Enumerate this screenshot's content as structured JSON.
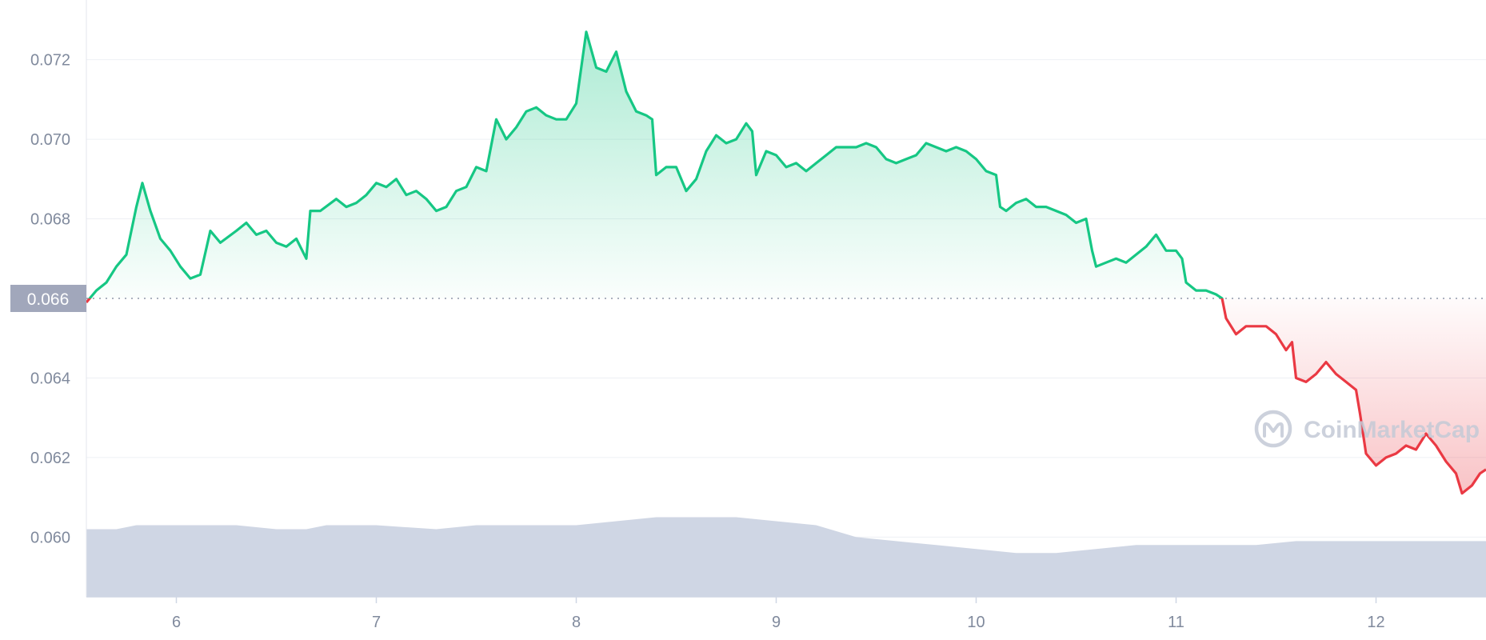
{
  "chart_data": {
    "type": "line",
    "title": "",
    "xlabel": "",
    "ylabel": "",
    "x_ticks": [
      "6",
      "7",
      "8",
      "9",
      "10",
      "11",
      "12"
    ],
    "y_ticks": [
      "0.060",
      "0.062",
      "0.064",
      "0.066",
      "0.068",
      "0.070",
      "0.072"
    ],
    "ylim": [
      0.0585,
      0.0735
    ],
    "xlim": [
      5.55,
      12.55
    ],
    "grid": true,
    "reference_line": {
      "value": 0.066,
      "label": "0.066",
      "style": "dotted"
    },
    "colors": {
      "above_reference": "#16c784",
      "below_reference": "#ea3943",
      "volume": "#cfd6e4",
      "grid": "#eef0f4",
      "tick_text": "#808a9d",
      "reference_label_bg": "#a1a7bb"
    },
    "series": [
      {
        "values": [
          [
            5.55,
            0.0659
          ],
          [
            5.6,
            0.0662
          ],
          [
            5.65,
            0.0664
          ],
          [
            5.7,
            0.0668
          ],
          [
            5.75,
            0.0671
          ],
          [
            5.8,
            0.0683
          ],
          [
            5.83,
            0.0689
          ],
          [
            5.87,
            0.0682
          ],
          [
            5.92,
            0.0675
          ],
          [
            5.97,
            0.0672
          ],
          [
            6.02,
            0.0668
          ],
          [
            6.07,
            0.0665
          ],
          [
            6.12,
            0.0666
          ],
          [
            6.17,
            0.0677
          ],
          [
            6.22,
            0.0674
          ],
          [
            6.3,
            0.0677
          ],
          [
            6.35,
            0.0679
          ],
          [
            6.4,
            0.0676
          ],
          [
            6.45,
            0.0677
          ],
          [
            6.5,
            0.0674
          ],
          [
            6.55,
            0.0673
          ],
          [
            6.6,
            0.0675
          ],
          [
            6.65,
            0.067
          ],
          [
            6.67,
            0.0682
          ],
          [
            6.72,
            0.0682
          ],
          [
            6.8,
            0.0685
          ],
          [
            6.85,
            0.0683
          ],
          [
            6.9,
            0.0684
          ],
          [
            6.95,
            0.0686
          ],
          [
            7.0,
            0.0689
          ],
          [
            7.05,
            0.0688
          ],
          [
            7.1,
            0.069
          ],
          [
            7.15,
            0.0686
          ],
          [
            7.2,
            0.0687
          ],
          [
            7.25,
            0.0685
          ],
          [
            7.3,
            0.0682
          ],
          [
            7.35,
            0.0683
          ],
          [
            7.4,
            0.0687
          ],
          [
            7.45,
            0.0688
          ],
          [
            7.5,
            0.0693
          ],
          [
            7.55,
            0.0692
          ],
          [
            7.6,
            0.0705
          ],
          [
            7.65,
            0.07
          ],
          [
            7.7,
            0.0703
          ],
          [
            7.75,
            0.0707
          ],
          [
            7.8,
            0.0708
          ],
          [
            7.85,
            0.0706
          ],
          [
            7.9,
            0.0705
          ],
          [
            7.95,
            0.0705
          ],
          [
            8.0,
            0.0709
          ],
          [
            8.05,
            0.0727
          ],
          [
            8.1,
            0.0718
          ],
          [
            8.15,
            0.0717
          ],
          [
            8.2,
            0.0722
          ],
          [
            8.25,
            0.0712
          ],
          [
            8.3,
            0.0707
          ],
          [
            8.35,
            0.0706
          ],
          [
            8.38,
            0.0705
          ],
          [
            8.4,
            0.0691
          ],
          [
            8.45,
            0.0693
          ],
          [
            8.5,
            0.0693
          ],
          [
            8.55,
            0.0687
          ],
          [
            8.6,
            0.069
          ],
          [
            8.65,
            0.0697
          ],
          [
            8.7,
            0.0701
          ],
          [
            8.75,
            0.0699
          ],
          [
            8.8,
            0.07
          ],
          [
            8.85,
            0.0704
          ],
          [
            8.88,
            0.0702
          ],
          [
            8.9,
            0.0691
          ],
          [
            8.95,
            0.0697
          ],
          [
            9.0,
            0.0696
          ],
          [
            9.05,
            0.0693
          ],
          [
            9.1,
            0.0694
          ],
          [
            9.15,
            0.0692
          ],
          [
            9.2,
            0.0694
          ],
          [
            9.25,
            0.0696
          ],
          [
            9.3,
            0.0698
          ],
          [
            9.35,
            0.0698
          ],
          [
            9.4,
            0.0698
          ],
          [
            9.45,
            0.0699
          ],
          [
            9.5,
            0.0698
          ],
          [
            9.55,
            0.0695
          ],
          [
            9.6,
            0.0694
          ],
          [
            9.65,
            0.0695
          ],
          [
            9.7,
            0.0696
          ],
          [
            9.75,
            0.0699
          ],
          [
            9.8,
            0.0698
          ],
          [
            9.85,
            0.0697
          ],
          [
            9.9,
            0.0698
          ],
          [
            9.95,
            0.0697
          ],
          [
            10.0,
            0.0695
          ],
          [
            10.05,
            0.0692
          ],
          [
            10.1,
            0.0691
          ],
          [
            10.12,
            0.0683
          ],
          [
            10.15,
            0.0682
          ],
          [
            10.2,
            0.0684
          ],
          [
            10.25,
            0.0685
          ],
          [
            10.3,
            0.0683
          ],
          [
            10.35,
            0.0683
          ],
          [
            10.4,
            0.0682
          ],
          [
            10.45,
            0.0681
          ],
          [
            10.5,
            0.0679
          ],
          [
            10.55,
            0.068
          ],
          [
            10.58,
            0.0672
          ],
          [
            10.6,
            0.0668
          ],
          [
            10.65,
            0.0669
          ],
          [
            10.7,
            0.067
          ],
          [
            10.75,
            0.0669
          ],
          [
            10.8,
            0.0671
          ],
          [
            10.85,
            0.0673
          ],
          [
            10.9,
            0.0676
          ],
          [
            10.95,
            0.0672
          ],
          [
            11.0,
            0.0672
          ],
          [
            11.03,
            0.067
          ],
          [
            11.05,
            0.0664
          ],
          [
            11.1,
            0.0662
          ],
          [
            11.15,
            0.0662
          ],
          [
            11.2,
            0.0661
          ],
          [
            11.23,
            0.066
          ],
          [
            11.25,
            0.0655
          ],
          [
            11.3,
            0.0651
          ],
          [
            11.35,
            0.0653
          ],
          [
            11.4,
            0.0653
          ],
          [
            11.45,
            0.0653
          ],
          [
            11.5,
            0.0651
          ],
          [
            11.55,
            0.0647
          ],
          [
            11.58,
            0.0649
          ],
          [
            11.6,
            0.064
          ],
          [
            11.65,
            0.0639
          ],
          [
            11.7,
            0.0641
          ],
          [
            11.75,
            0.0644
          ],
          [
            11.8,
            0.0641
          ],
          [
            11.85,
            0.0639
          ],
          [
            11.9,
            0.0637
          ],
          [
            11.92,
            0.0631
          ],
          [
            11.95,
            0.0621
          ],
          [
            12.0,
            0.0618
          ],
          [
            12.05,
            0.062
          ],
          [
            12.1,
            0.0621
          ],
          [
            12.15,
            0.0623
          ],
          [
            12.2,
            0.0622
          ],
          [
            12.25,
            0.0626
          ],
          [
            12.3,
            0.0623
          ],
          [
            12.35,
            0.0619
          ],
          [
            12.4,
            0.0616
          ],
          [
            12.43,
            0.0611
          ],
          [
            12.48,
            0.0613
          ],
          [
            12.52,
            0.0616
          ],
          [
            12.55,
            0.0617
          ]
        ]
      },
      {
        "type": "area",
        "role": "volume",
        "values": [
          [
            5.55,
            0.0602
          ],
          [
            5.7,
            0.0602
          ],
          [
            5.8,
            0.0603
          ],
          [
            6.0,
            0.0603
          ],
          [
            6.2,
            0.0603
          ],
          [
            6.3,
            0.0603
          ],
          [
            6.5,
            0.0602
          ],
          [
            6.65,
            0.0602
          ],
          [
            6.75,
            0.0603
          ],
          [
            7.0,
            0.0603
          ],
          [
            7.3,
            0.0602
          ],
          [
            7.5,
            0.0603
          ],
          [
            7.65,
            0.0603
          ],
          [
            7.8,
            0.0603
          ],
          [
            8.0,
            0.0603
          ],
          [
            8.2,
            0.0604
          ],
          [
            8.4,
            0.0605
          ],
          [
            8.6,
            0.0605
          ],
          [
            8.8,
            0.0605
          ],
          [
            9.0,
            0.0604
          ],
          [
            9.2,
            0.0603
          ],
          [
            9.4,
            0.06
          ],
          [
            9.6,
            0.0599
          ],
          [
            9.8,
            0.0598
          ],
          [
            10.0,
            0.0597
          ],
          [
            10.2,
            0.0596
          ],
          [
            10.4,
            0.0596
          ],
          [
            10.6,
            0.0597
          ],
          [
            10.8,
            0.0598
          ],
          [
            11.0,
            0.0598
          ],
          [
            11.2,
            0.0598
          ],
          [
            11.4,
            0.0598
          ],
          [
            11.6,
            0.0599
          ],
          [
            11.8,
            0.0599
          ],
          [
            12.0,
            0.0599
          ],
          [
            12.2,
            0.0599
          ],
          [
            12.4,
            0.0599
          ],
          [
            12.55,
            0.0599
          ]
        ]
      }
    ]
  },
  "watermark": {
    "text": "CoinMarketCap",
    "icon": "coinmarketcap-logo-icon"
  }
}
